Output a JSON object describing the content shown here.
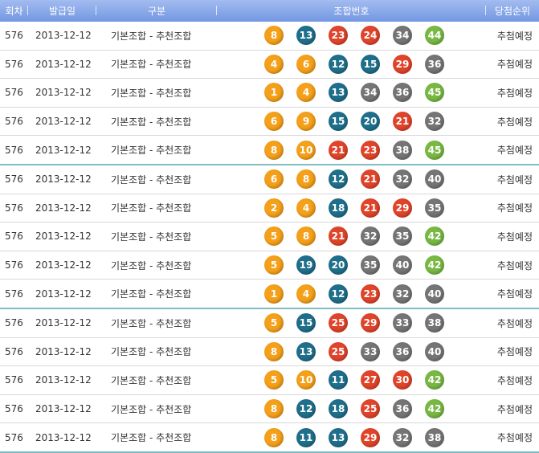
{
  "header": {
    "round": "회차",
    "issue_date": "발급일",
    "category": "구분",
    "numbers": "조합번호",
    "rank": "당첨순위"
  },
  "ball_colors": {
    "1-10": "#f5a01a",
    "11-20": "#1f6f8b",
    "21-30": "#e0442a",
    "31-40": "#757575",
    "41-45": "#78b843"
  },
  "rows": [
    {
      "round": "576",
      "date": "2013-12-12",
      "type": "기본조합 - 추천조합",
      "numbers": [
        8,
        13,
        23,
        24,
        34,
        44
      ],
      "rank": "추첨예정"
    },
    {
      "round": "576",
      "date": "2013-12-12",
      "type": "기본조합 - 추천조합",
      "numbers": [
        4,
        6,
        12,
        15,
        29,
        36
      ],
      "rank": "추첨예정"
    },
    {
      "round": "576",
      "date": "2013-12-12",
      "type": "기본조합 - 추천조합",
      "numbers": [
        1,
        4,
        13,
        34,
        36,
        45
      ],
      "rank": "추첨예정"
    },
    {
      "round": "576",
      "date": "2013-12-12",
      "type": "기본조합 - 추천조합",
      "numbers": [
        6,
        9,
        15,
        20,
        21,
        32
      ],
      "rank": "추첨예정"
    },
    {
      "round": "576",
      "date": "2013-12-12",
      "type": "기본조합 - 추천조합",
      "numbers": [
        8,
        10,
        21,
        23,
        38,
        45
      ],
      "rank": "추첨예정"
    },
    {
      "round": "576",
      "date": "2013-12-12",
      "type": "기본조합 - 추천조합",
      "numbers": [
        6,
        8,
        12,
        21,
        32,
        40
      ],
      "rank": "추첨예정"
    },
    {
      "round": "576",
      "date": "2013-12-12",
      "type": "기본조합 - 추천조합",
      "numbers": [
        2,
        4,
        18,
        21,
        29,
        35
      ],
      "rank": "추첨예정"
    },
    {
      "round": "576",
      "date": "2013-12-12",
      "type": "기본조합 - 추천조합",
      "numbers": [
        5,
        8,
        21,
        32,
        35,
        42
      ],
      "rank": "추첨예정"
    },
    {
      "round": "576",
      "date": "2013-12-12",
      "type": "기본조합 - 추천조합",
      "numbers": [
        5,
        19,
        20,
        35,
        40,
        42
      ],
      "rank": "추첨예정"
    },
    {
      "round": "576",
      "date": "2013-12-12",
      "type": "기본조합 - 추천조합",
      "numbers": [
        1,
        4,
        12,
        23,
        32,
        40
      ],
      "rank": "추첨예정"
    },
    {
      "round": "576",
      "date": "2013-12-12",
      "type": "기본조합 - 추천조합",
      "numbers": [
        5,
        15,
        25,
        29,
        33,
        38
      ],
      "rank": "추첨예정"
    },
    {
      "round": "576",
      "date": "2013-12-12",
      "type": "기본조합 - 추천조합",
      "numbers": [
        8,
        13,
        25,
        33,
        36,
        40
      ],
      "rank": "추첨예정"
    },
    {
      "round": "576",
      "date": "2013-12-12",
      "type": "기본조합 - 추천조합",
      "numbers": [
        5,
        10,
        11,
        27,
        30,
        42
      ],
      "rank": "추첨예정"
    },
    {
      "round": "576",
      "date": "2013-12-12",
      "type": "기본조합 - 추천조합",
      "numbers": [
        8,
        12,
        18,
        25,
        36,
        42
      ],
      "rank": "추첨예정"
    },
    {
      "round": "576",
      "date": "2013-12-12",
      "type": "기본조합 - 추천조합",
      "numbers": [
        8,
        11,
        13,
        29,
        32,
        38
      ],
      "rank": "추첨예정"
    }
  ]
}
